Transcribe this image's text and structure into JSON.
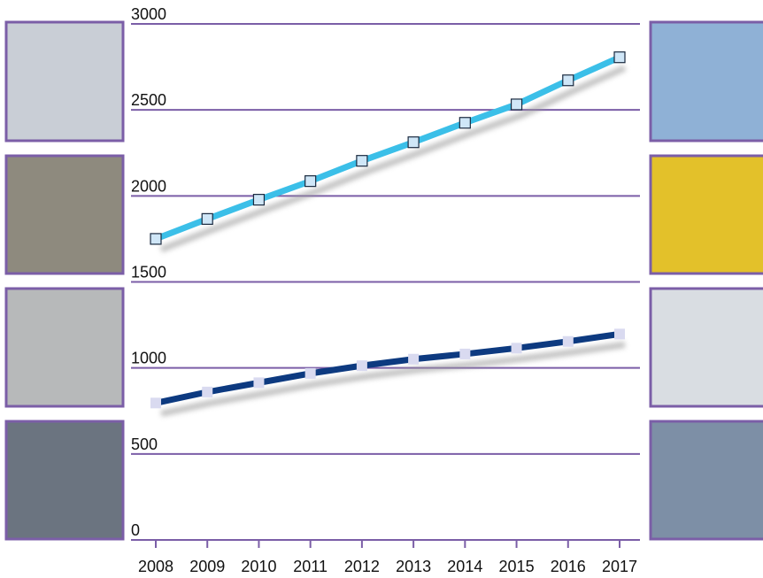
{
  "chart_data": {
    "type": "line",
    "x": [
      "2008",
      "2009",
      "2010",
      "2011",
      "2012",
      "2013",
      "2014",
      "2015",
      "2016",
      "2017"
    ],
    "series": [
      {
        "color": "#3bbfe8",
        "values": [
          1750,
          1866,
          1978,
          2086,
          2204,
          2312,
          2425,
          2532,
          2672,
          2806
        ]
      },
      {
        "color": "#0d3a80",
        "values": [
          796,
          860,
          914,
          968,
          1013,
          1051,
          1081,
          1115,
          1154,
          1197
        ]
      }
    ],
    "ylim": [
      0,
      3000
    ],
    "yticks": [
      0,
      500,
      1000,
      1500,
      2000,
      2500,
      3000
    ],
    "grid": true,
    "grid_color": "#7b5ea7"
  }
}
